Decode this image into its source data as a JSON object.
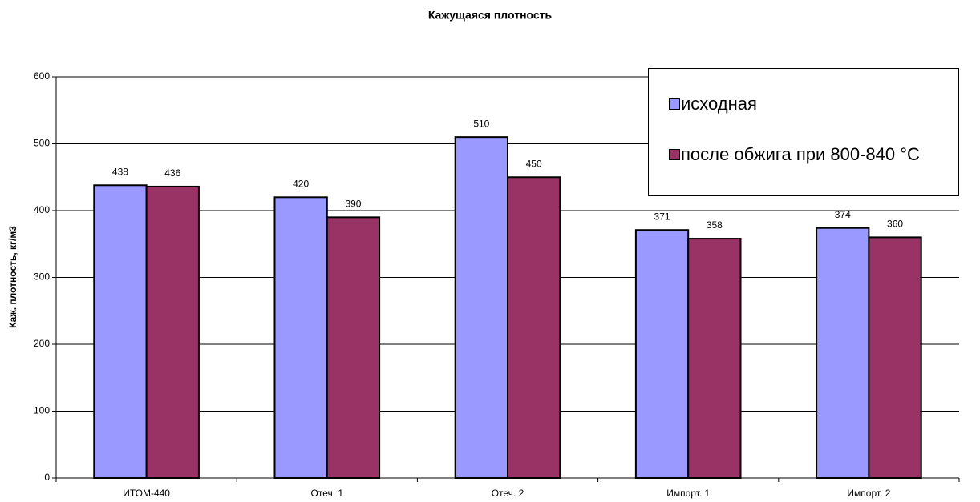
{
  "chart_data": {
    "type": "bar",
    "title": "Кажущаяся плотность",
    "y_label": "Каж. плотность, кг/м3",
    "categories": [
      "ИТОМ-440",
      "Отеч. 1",
      "Отеч. 2",
      "Импорт. 1",
      "Импорт. 2"
    ],
    "series": [
      {
        "name": "исходная",
        "color": "#9999ff",
        "values": [
          438,
          420,
          510,
          371,
          374
        ]
      },
      {
        "name": "после обжига при 800-840 °C",
        "color": "#993366",
        "values": [
          436,
          390,
          450,
          358,
          360
        ]
      }
    ],
    "ylim": [
      0,
      600
    ],
    "yticks": [
      0,
      100,
      200,
      300,
      400,
      500,
      600
    ],
    "grid": true,
    "legend": "upper right"
  }
}
